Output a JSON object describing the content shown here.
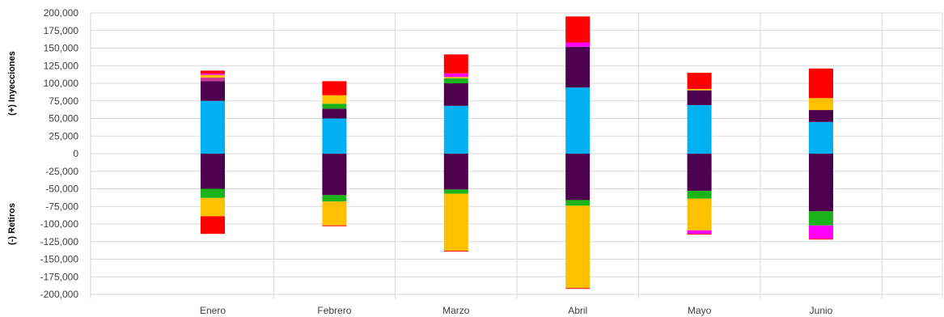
{
  "chart_data": {
    "type": "bar",
    "stacked": true,
    "categories": [
      "Enero",
      "Febrero",
      "Marzo",
      "Abril",
      "Mayo",
      "Junio"
    ],
    "ylim": [
      -200000,
      200000
    ],
    "yticks": [
      200000,
      175000,
      150000,
      125000,
      100000,
      75000,
      50000,
      25000,
      0,
      -25000,
      -50000,
      -75000,
      -100000,
      -125000,
      -150000,
      -175000,
      -200000
    ],
    "ytick_labels": [
      "200,000",
      "175,000",
      "150,000",
      "125,000",
      "100,000",
      "75,000",
      "50,000",
      "25,000",
      "0",
      "-25,000",
      "-50,000",
      "-75,000",
      "-100,000",
      "-125,000",
      "-150,000",
      "-175,000",
      "-200,000"
    ],
    "ylabel_positive": "(+) Inyecciones",
    "ylabel_negative": "(-) Retiros",
    "grid": true,
    "legend": "none",
    "series": [
      {
        "color": "#00b0f0",
        "values": [
          75000,
          50000,
          68000,
          94000,
          69000,
          45000
        ]
      },
      {
        "color": "#4d004d",
        "values": [
          -50000,
          -59000,
          -51000,
          -66000,
          -53000,
          -82000
        ]
      },
      {
        "color": "#1ab31a",
        "values": [
          -13000,
          -9000,
          -6000,
          -8000,
          -11000,
          -20000
        ]
      },
      {
        "color": "#ffc000",
        "values": [
          -26000,
          -34000,
          -81000,
          -117000,
          -45000,
          0
        ]
      },
      {
        "color": "#ff00ff",
        "values": [
          0,
          0,
          0,
          0,
          -5000,
          -19000
        ]
      },
      {
        "color": "#ff0000",
        "values": [
          -25000,
          -1000,
          -1000,
          -1000,
          -1000,
          -1000
        ]
      },
      {
        "color": "#4d004d",
        "values": [
          28000,
          14000,
          32000,
          58000,
          21000,
          17000
        ]
      },
      {
        "color": "#1ab31a",
        "values": [
          0,
          7000,
          7000,
          0,
          0,
          0
        ]
      },
      {
        "color": "#cc3399",
        "values": [
          5000,
          0,
          0,
          0,
          0,
          0
        ]
      },
      {
        "color": "#ffc000",
        "values": [
          4000,
          12000,
          2000,
          0,
          2000,
          17000
        ]
      },
      {
        "color": "#ff00ff",
        "values": [
          2000,
          0,
          5000,
          6000,
          0,
          0
        ]
      },
      {
        "color": "#ff0000",
        "values": [
          4000,
          20000,
          27000,
          37000,
          23000,
          42000
        ]
      }
    ]
  }
}
